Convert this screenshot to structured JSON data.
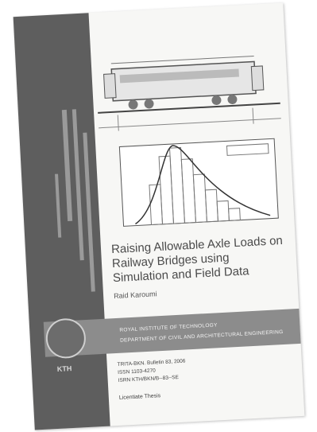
{
  "cover": {
    "title": "Raising Allowable Axle Loads on Railway Bridges using Simulation and Field Data",
    "author": "Raid Karoumi",
    "institution": [
      "ROYAL INSTITUTE OF TECHNOLOGY",
      "DEPARTMENT OF CIVIL AND ARCHITECTURAL ENGINEERING"
    ],
    "series": [
      "TRITA-BKN. Bulletin 83, 2006",
      "ISSN 1103-4270",
      "ISRN KTH/BKN/B--83--SE"
    ],
    "thesis_type": "Licentiate Thesis",
    "seal_label": "KTH"
  }
}
